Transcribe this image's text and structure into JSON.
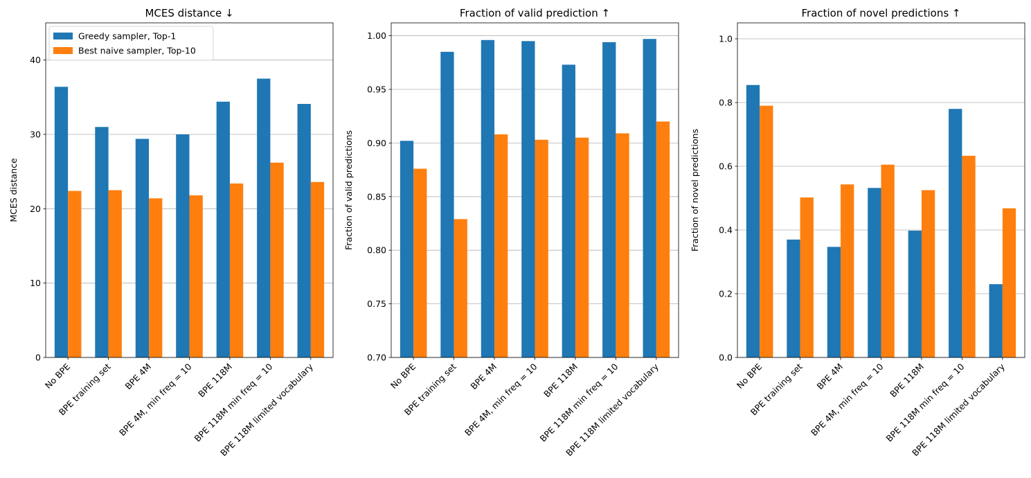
{
  "chart_data": [
    {
      "type": "bar",
      "title": "MCES distance ↓",
      "xlabel": "",
      "ylabel": "MCES distance",
      "ylim": [
        0,
        45
      ],
      "yticks": [
        0,
        10,
        20,
        30,
        40
      ],
      "ytick_labels": [
        "0",
        "10",
        "20",
        "30",
        "40"
      ],
      "grid": "horizontal",
      "legend": "top-left",
      "categories": [
        "No BPE",
        "BPE training set",
        "BPE 4M",
        "BPE 4M, min freq = 10",
        "BPE 118M",
        "BPE 118M min freq = 10",
        "BPE 118M limited vocabulary"
      ],
      "series": [
        {
          "name": "Greedy sampler, Top-1",
          "color": "#1f77b4",
          "values": [
            36.4,
            31.0,
            29.4,
            30.0,
            34.4,
            37.5,
            34.1
          ]
        },
        {
          "name": "Best naive sampler, Top-10",
          "color": "#ff7f0e",
          "values": [
            22.4,
            22.5,
            21.4,
            21.8,
            23.4,
            26.2,
            23.6
          ]
        }
      ]
    },
    {
      "type": "bar",
      "title": "Fraction of valid prediction ↑",
      "xlabel": "",
      "ylabel": "Fraction of valid predictions",
      "ylim": [
        0.7,
        1.012
      ],
      "yticks": [
        0.7,
        0.75,
        0.8,
        0.85,
        0.9,
        0.95,
        1.0
      ],
      "ytick_labels": [
        "0.70",
        "0.75",
        "0.80",
        "0.85",
        "0.90",
        "0.95",
        "1.00"
      ],
      "grid": "horizontal",
      "categories": [
        "No BPE",
        "BPE training set",
        "BPE 4M",
        "BPE 4M, min freq = 10",
        "BPE 118M",
        "BPE 118M min freq = 10",
        "BPE 118M limited vocabulary"
      ],
      "series": [
        {
          "color": "#1f77b4",
          "values": [
            0.902,
            0.985,
            0.996,
            0.995,
            0.973,
            0.994,
            0.997
          ]
        },
        {
          "color": "#ff7f0e",
          "values": [
            0.876,
            0.829,
            0.908,
            0.903,
            0.905,
            0.909,
            0.92
          ]
        }
      ]
    },
    {
      "type": "bar",
      "title": "Fraction of novel predictions ↑",
      "xlabel": "",
      "ylabel": "Fraction of novel predictions",
      "ylim": [
        0,
        1.05
      ],
      "yticks": [
        0,
        0.2,
        0.4,
        0.6,
        0.8,
        1.0
      ],
      "ytick_labels": [
        "0.0",
        "0.2",
        "0.4",
        "0.6",
        "0.8",
        "1.0"
      ],
      "grid": "horizontal",
      "categories": [
        "No BPE",
        "BPE training set",
        "BPE 4M",
        "BPE 4M, min freq = 10",
        "BPE 118M",
        "BPE 118M min freq = 10",
        "BPE 118M limited vocabulary"
      ],
      "series": [
        {
          "color": "#1f77b4",
          "values": [
            0.855,
            0.37,
            0.347,
            0.532,
            0.398,
            0.78,
            0.23
          ]
        },
        {
          "color": "#ff7f0e",
          "values": [
            0.79,
            0.502,
            0.543,
            0.605,
            0.525,
            0.633,
            0.468
          ]
        }
      ]
    }
  ]
}
